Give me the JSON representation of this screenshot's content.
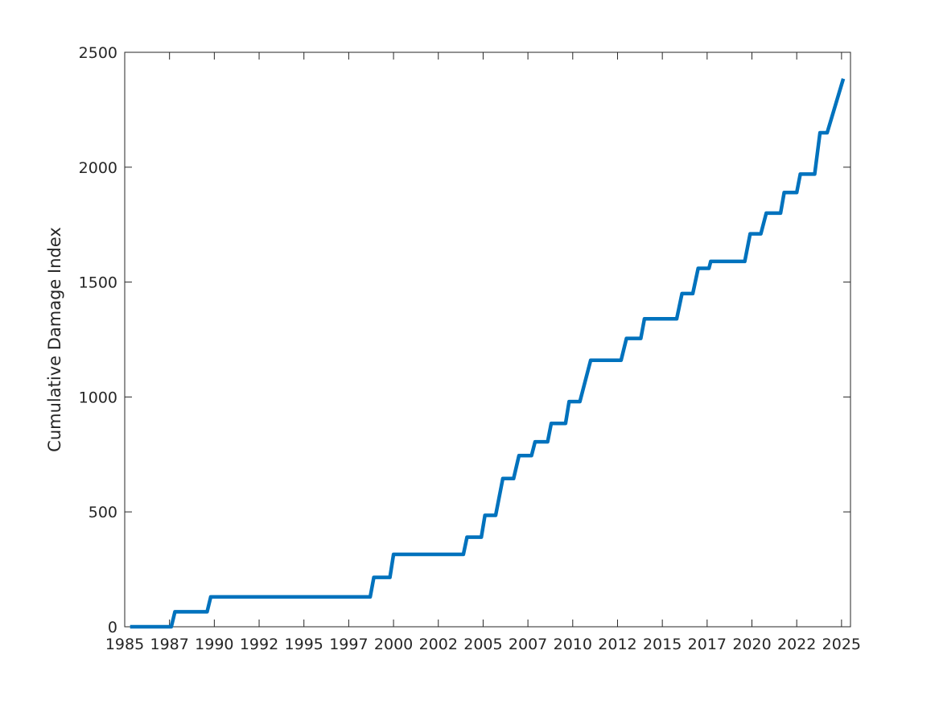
{
  "chart_data": {
    "type": "line",
    "title": "",
    "xlabel": "",
    "ylabel": "Cumulative Damage Index",
    "xlim": [
      1985.0,
      2025.5
    ],
    "ylim": [
      0,
      2500
    ],
    "grid": false,
    "x_ticks": [
      {
        "value": 1985.0,
        "label": "1985"
      },
      {
        "value": 1987.5,
        "label": "1987"
      },
      {
        "value": 1990.0,
        "label": "1990"
      },
      {
        "value": 1992.5,
        "label": "1992"
      },
      {
        "value": 1995.0,
        "label": "1995"
      },
      {
        "value": 1997.5,
        "label": "1997"
      },
      {
        "value": 2000.0,
        "label": "2000"
      },
      {
        "value": 2002.5,
        "label": "2002"
      },
      {
        "value": 2005.0,
        "label": "2005"
      },
      {
        "value": 2007.5,
        "label": "2007"
      },
      {
        "value": 2010.0,
        "label": "2010"
      },
      {
        "value": 2012.5,
        "label": "2012"
      },
      {
        "value": 2015.0,
        "label": "2015"
      },
      {
        "value": 2017.5,
        "label": "2017"
      },
      {
        "value": 2020.0,
        "label": "2020"
      },
      {
        "value": 2022.5,
        "label": "2022"
      },
      {
        "value": 2025.0,
        "label": "2025"
      }
    ],
    "y_ticks": [
      {
        "value": 0,
        "label": "0"
      },
      {
        "value": 500,
        "label": "500"
      },
      {
        "value": 1000,
        "label": "1000"
      },
      {
        "value": 1500,
        "label": "1500"
      },
      {
        "value": 2000,
        "label": "2000"
      },
      {
        "value": 2500,
        "label": "2500"
      }
    ],
    "series": [
      {
        "color": "#0072bd",
        "x": [
          1985.3,
          1987.6,
          1987.8,
          1989.6,
          1989.8,
          1998.7,
          1998.9,
          1999.8,
          2000.0,
          2003.9,
          2004.1,
          2004.9,
          2005.1,
          2005.7,
          2006.1,
          2006.7,
          2007.0,
          2007.7,
          2007.9,
          2008.6,
          2008.8,
          2009.6,
          2009.8,
          2010.4,
          2011.0,
          2012.7,
          2013.0,
          2013.8,
          2014.0,
          2015.8,
          2016.1,
          2016.7,
          2017.0,
          2017.6,
          2017.7,
          2019.6,
          2019.9,
          2020.5,
          2020.8,
          2021.6,
          2021.8,
          2022.5,
          2022.7,
          2023.5,
          2023.8,
          2024.2,
          2025.1
        ],
        "y": [
          0,
          0,
          65,
          65,
          130,
          130,
          215,
          215,
          315,
          315,
          390,
          390,
          485,
          485,
          645,
          645,
          745,
          745,
          805,
          805,
          885,
          885,
          980,
          980,
          1160,
          1160,
          1255,
          1255,
          1340,
          1340,
          1450,
          1450,
          1560,
          1560,
          1590,
          1590,
          1710,
          1710,
          1800,
          1800,
          1890,
          1890,
          1970,
          1970,
          2150,
          2150,
          2385
        ]
      }
    ]
  }
}
